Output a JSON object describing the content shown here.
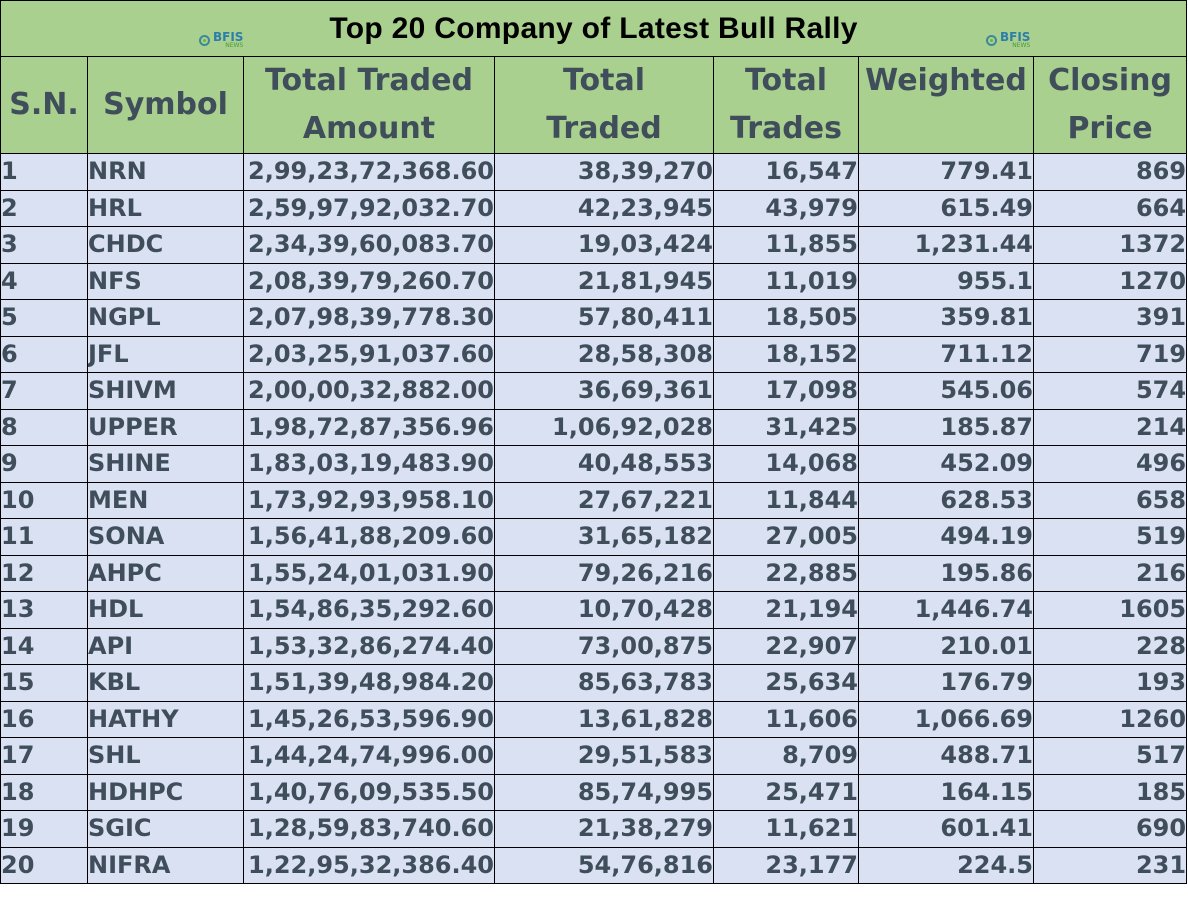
{
  "title": "Top 20 Company of Latest Bull Rally",
  "logo": {
    "main": "BFIS",
    "sub": "NEWS"
  },
  "headers": {
    "sn": "S.N.",
    "symbol": "Symbol",
    "amount_line1": "Total Traded",
    "amount_line2": "Amount",
    "traded_line1": "Total",
    "traded_line2": "Traded",
    "trades_line1": "Total",
    "trades_line2": "Trades",
    "weighted": "Weighted",
    "closing_line1": "Closing",
    "closing_line2": "Price"
  },
  "rows": [
    {
      "sn": "1",
      "symbol": "NRN",
      "amount": "2,99,23,72,368.60",
      "traded": "38,39,270",
      "trades": "16,547",
      "weighted": "779.41",
      "closing": "869"
    },
    {
      "sn": "2",
      "symbol": "HRL",
      "amount": "2,59,97,92,032.70",
      "traded": "42,23,945",
      "trades": "43,979",
      "weighted": "615.49",
      "closing": "664"
    },
    {
      "sn": "3",
      "symbol": "CHDC",
      "amount": "2,34,39,60,083.70",
      "traded": "19,03,424",
      "trades": "11,855",
      "weighted": "1,231.44",
      "closing": "1372"
    },
    {
      "sn": "4",
      "symbol": "NFS",
      "amount": "2,08,39,79,260.70",
      "traded": "21,81,945",
      "trades": "11,019",
      "weighted": "955.1",
      "closing": "1270"
    },
    {
      "sn": "5",
      "symbol": "NGPL",
      "amount": "2,07,98,39,778.30",
      "traded": "57,80,411",
      "trades": "18,505",
      "weighted": "359.81",
      "closing": "391"
    },
    {
      "sn": "6",
      "symbol": "JFL",
      "amount": "2,03,25,91,037.60",
      "traded": "28,58,308",
      "trades": "18,152",
      "weighted": "711.12",
      "closing": "719"
    },
    {
      "sn": "7",
      "symbol": "SHIVM",
      "amount": "2,00,00,32,882.00",
      "traded": "36,69,361",
      "trades": "17,098",
      "weighted": "545.06",
      "closing": "574"
    },
    {
      "sn": "8",
      "symbol": "UPPER",
      "amount": "1,98,72,87,356.96",
      "traded": "1,06,92,028",
      "trades": "31,425",
      "weighted": "185.87",
      "closing": "214"
    },
    {
      "sn": "9",
      "symbol": "SHINE",
      "amount": "1,83,03,19,483.90",
      "traded": "40,48,553",
      "trades": "14,068",
      "weighted": "452.09",
      "closing": "496"
    },
    {
      "sn": "10",
      "symbol": "MEN",
      "amount": "1,73,92,93,958.10",
      "traded": "27,67,221",
      "trades": "11,844",
      "weighted": "628.53",
      "closing": "658"
    },
    {
      "sn": "11",
      "symbol": "SONA",
      "amount": "1,56,41,88,209.60",
      "traded": "31,65,182",
      "trades": "27,005",
      "weighted": "494.19",
      "closing": "519"
    },
    {
      "sn": "12",
      "symbol": "AHPC",
      "amount": "1,55,24,01,031.90",
      "traded": "79,26,216",
      "trades": "22,885",
      "weighted": "195.86",
      "closing": "216"
    },
    {
      "sn": "13",
      "symbol": "HDL",
      "amount": "1,54,86,35,292.60",
      "traded": "10,70,428",
      "trades": "21,194",
      "weighted": "1,446.74",
      "closing": "1605"
    },
    {
      "sn": "14",
      "symbol": "API",
      "amount": "1,53,32,86,274.40",
      "traded": "73,00,875",
      "trades": "22,907",
      "weighted": "210.01",
      "closing": "228"
    },
    {
      "sn": "15",
      "symbol": "KBL",
      "amount": "1,51,39,48,984.20",
      "traded": "85,63,783",
      "trades": "25,634",
      "weighted": "176.79",
      "closing": "193"
    },
    {
      "sn": "16",
      "symbol": "HATHY",
      "amount": "1,45,26,53,596.90",
      "traded": "13,61,828",
      "trades": "11,606",
      "weighted": "1,066.69",
      "closing": "1260"
    },
    {
      "sn": "17",
      "symbol": "SHL",
      "amount": "1,44,24,74,996.00",
      "traded": "29,51,583",
      "trades": "8,709",
      "weighted": "488.71",
      "closing": "517"
    },
    {
      "sn": "18",
      "symbol": "HDHPC",
      "amount": "1,40,76,09,535.50",
      "traded": "85,74,995",
      "trades": "25,471",
      "weighted": "164.15",
      "closing": "185"
    },
    {
      "sn": "19",
      "symbol": "SGIC",
      "amount": "1,28,59,83,740.60",
      "traded": "21,38,279",
      "trades": "11,621",
      "weighted": "601.41",
      "closing": "690"
    },
    {
      "sn": "20",
      "symbol": "NIFRA",
      "amount": "1,22,95,32,386.40",
      "traded": "54,76,816",
      "trades": "23,177",
      "weighted": "224.5",
      "closing": "231"
    }
  ]
}
